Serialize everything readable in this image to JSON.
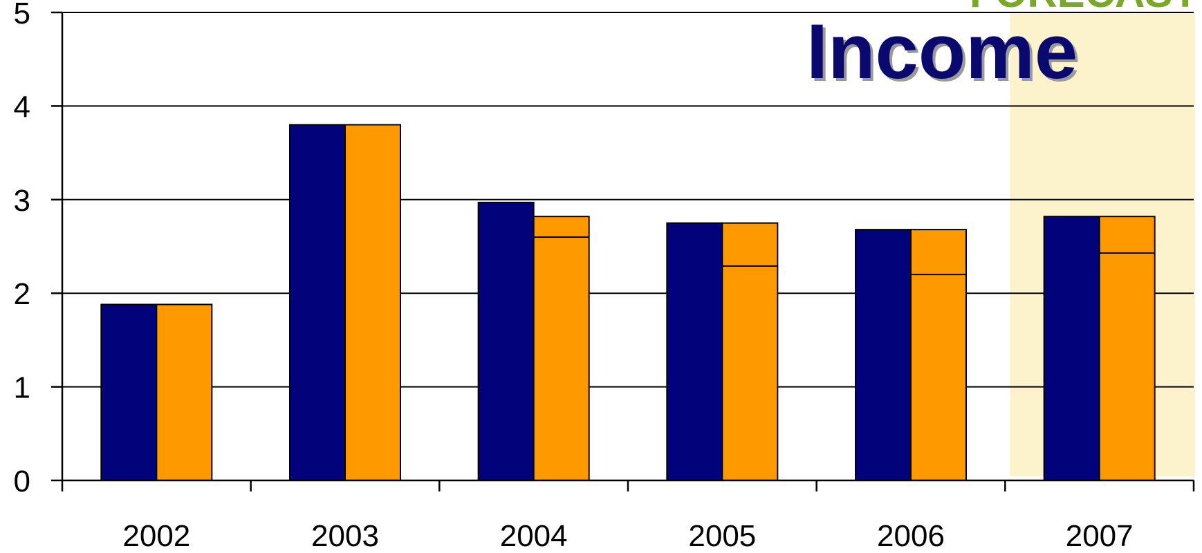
{
  "chart_data": {
    "type": "bar",
    "title": "Income",
    "corner_label": "FORECAST",
    "categories": [
      "2002",
      "2003",
      "2004",
      "2005",
      "2006",
      "2007"
    ],
    "highlighted_category": "2007",
    "ylim": [
      0,
      5
    ],
    "yticks": [
      0,
      1,
      2,
      3,
      4,
      5
    ],
    "grid": true,
    "legend": "none",
    "series": [
      {
        "values": [
          1.88,
          3.8,
          2.97,
          2.75,
          2.68,
          2.82
        ]
      },
      {
        "values": [
          1.88,
          3.8,
          2.82,
          2.75,
          2.68,
          2.82
        ],
        "divider_values": [
          null,
          null,
          2.6,
          2.29,
          2.2,
          2.43
        ]
      }
    ]
  },
  "colors": {
    "series_1": "#02037a",
    "series_2": "#ff9900",
    "highlight_band": "#fcf3cc",
    "title": "#0a0a6e",
    "title_shadow": "#9a9a9a",
    "corner_label": "#7aa828",
    "axis": "#000000",
    "grid": "#000000"
  }
}
